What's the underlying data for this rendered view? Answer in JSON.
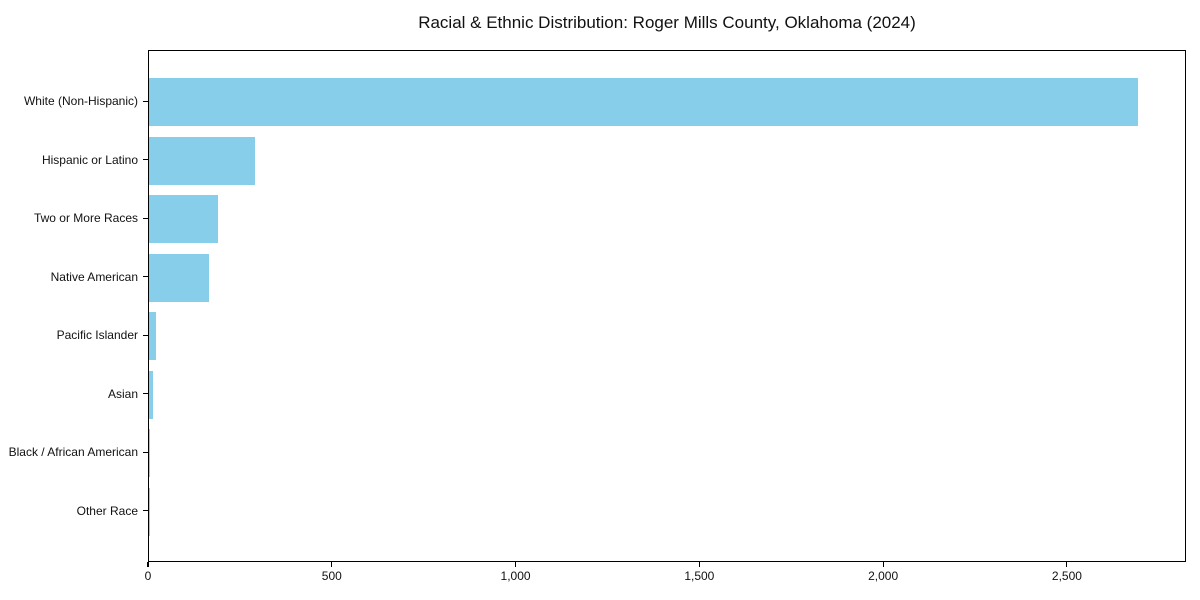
{
  "title": "Racial & Ethnic Distribution: Roger Mills County, Oklahoma (2024)",
  "colors": {
    "bar": "#87CEEB",
    "axis": "#000000",
    "text": "#111111",
    "background": "#ffffff"
  },
  "chart_data": {
    "type": "bar",
    "orientation": "horizontal",
    "title": "Racial & Ethnic Distribution: Roger Mills County, Oklahoma (2024)",
    "categories": [
      "White (Non-Hispanic)",
      "Hispanic or Latino",
      "Two or More Races",
      "Native American",
      "Pacific Islander",
      "Asian",
      "Black / African American",
      "Other Race"
    ],
    "values": [
      2690,
      289,
      188,
      163,
      19,
      10,
      2,
      1
    ],
    "xlabel": "",
    "ylabel": "",
    "xlim": [
      0,
      2824
    ],
    "xticks": [
      0,
      500,
      1000,
      1500,
      2000,
      2500
    ],
    "xtick_labels": [
      "0",
      "500",
      "1,000",
      "1,500",
      "2,000",
      "2,500"
    ],
    "grid": false,
    "legend": null,
    "bar_color": "#87CEEB"
  }
}
